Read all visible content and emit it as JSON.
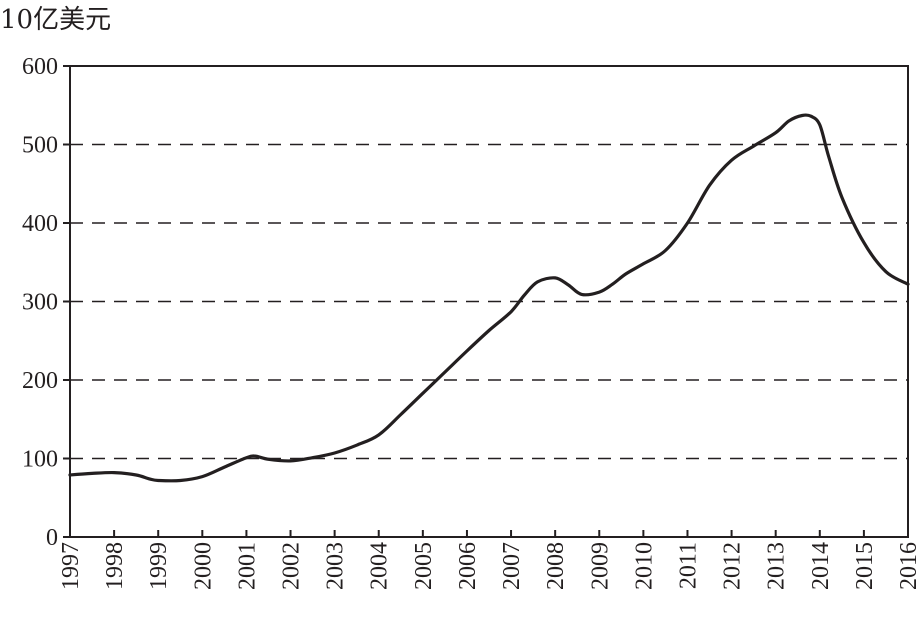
{
  "colors": {
    "line": "#231f20",
    "axis": "#231f20",
    "grid": "#231f20",
    "background": "#ffffff"
  },
  "chart_data": {
    "type": "line",
    "title": "",
    "xlabel": "",
    "ylabel": "10亿美元",
    "xlim": [
      1997,
      2016
    ],
    "ylim": [
      0,
      600
    ],
    "x_ticks": [
      "1997",
      "1998",
      "1999",
      "2000",
      "2001",
      "2002",
      "2003",
      "2004",
      "2005",
      "2006",
      "2007",
      "2008",
      "2009",
      "2010",
      "2011",
      "2012",
      "2013",
      "2014",
      "2015",
      "2016"
    ],
    "y_ticks": [
      "0",
      "100",
      "200",
      "300",
      "400",
      "500",
      "600"
    ],
    "grid": "horizontal dashed at 100, 200, 300, 400, 500",
    "legend": "none",
    "series": [
      {
        "x": [
          1997,
          1997.5,
          1998,
          1998.5,
          1998.8,
          1999,
          1999.5,
          2000,
          2000.5,
          2001,
          2001.2,
          2001.5,
          2002,
          2002.5,
          2003,
          2003.5,
          2004,
          2004.5,
          2005,
          2005.5,
          2006,
          2006.5,
          2007,
          2007.3,
          2007.6,
          2008,
          2008.3,
          2008.6,
          2009,
          2009.3,
          2009.6,
          2010,
          2010.5,
          2011,
          2011.5,
          2012,
          2012.5,
          2013,
          2013.3,
          2013.6,
          2013.8,
          2014,
          2014.2,
          2014.5,
          2015,
          2015.5,
          2016
        ],
        "y": [
          79,
          81,
          82,
          79,
          74,
          72,
          72,
          77,
          89,
          101,
          103,
          99,
          97,
          101,
          107,
          117,
          130,
          156,
          183,
          210,
          237,
          263,
          287,
          308,
          325,
          330,
          321,
          309,
          312,
          322,
          335,
          348,
          365,
          400,
          448,
          480,
          498,
          515,
          530,
          537,
          536,
          525,
          485,
          433,
          375,
          338,
          322
        ]
      }
    ]
  }
}
